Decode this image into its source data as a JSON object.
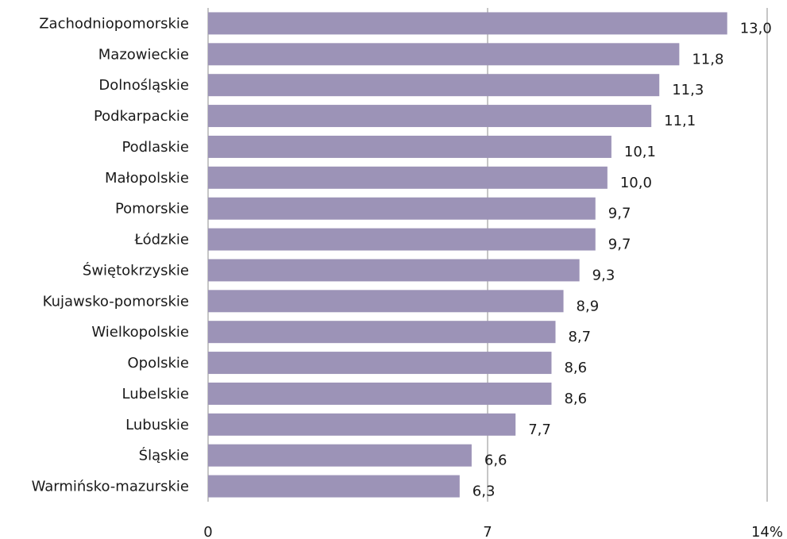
{
  "chart_data": {
    "type": "bar",
    "orientation": "horizontal",
    "categories": [
      "Zachodniopomorskie",
      "Mazowieckie",
      "Dolnośląskie",
      "Podkarpackie",
      "Podlaskie",
      "Małopolskie",
      "Pomorskie",
      "Łódzkie",
      "Świętokrzyskie",
      "Kujawsko-pomorskie",
      "Wielkopolskie",
      "Opolskie",
      "Lubelskie",
      "Lubuskie",
      "Śląskie",
      "Warmińsko-mazurskie"
    ],
    "values": [
      13.0,
      11.8,
      11.3,
      11.1,
      10.1,
      10.0,
      9.7,
      9.7,
      9.3,
      8.9,
      8.7,
      8.6,
      8.6,
      7.7,
      6.6,
      6.3
    ],
    "data_labels": [
      "13,0",
      "11,8",
      "11,3",
      "11,1",
      "10,1",
      "10,0",
      "9,7",
      "9,7",
      "9,3",
      "8,9",
      "8,7",
      "8,6",
      "8,6",
      "7,7",
      "6,6",
      "6,3"
    ],
    "xlim": [
      0,
      14
    ],
    "x_ticks": [
      0,
      7,
      14
    ],
    "x_tick_labels": [
      "0",
      "7",
      "14%"
    ],
    "grid": "vertical",
    "legend": "none",
    "bar_color": "#9c93b7",
    "grid_color": "#8c8c8c"
  }
}
